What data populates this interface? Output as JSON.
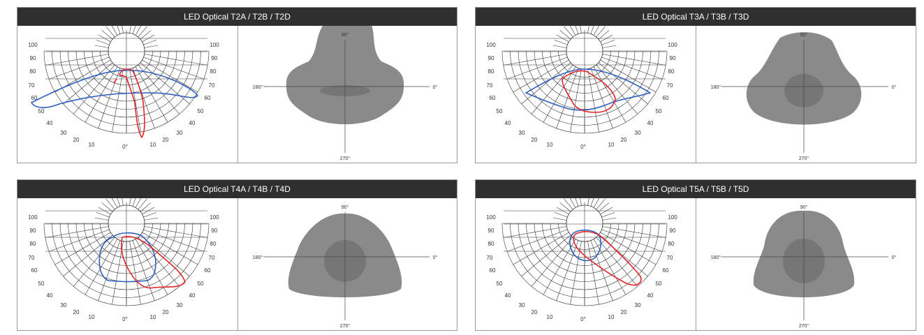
{
  "panels": [
    {
      "title": "LED Optical T2A / T2B / T2D",
      "polar": {
        "radial_labels": [
          "100",
          "90",
          "80",
          "70",
          "60",
          "50",
          "40",
          "30",
          "20",
          "10",
          "0°",
          "10",
          "20",
          "30",
          "40",
          "50",
          "60",
          "70",
          "80",
          "90",
          "100"
        ]
      },
      "iso": {
        "label_top": "90°",
        "label_left": "180°",
        "label_right": "0°",
        "label_bottom": "270°"
      }
    },
    {
      "title": "LED Optical T3A / T3B / T3D",
      "polar": {
        "radial_labels": [
          "100",
          "90",
          "80",
          "70",
          "60",
          "50",
          "40",
          "30",
          "20",
          "10",
          "0°",
          "10",
          "20",
          "30",
          "40",
          "50",
          "60",
          "70",
          "80",
          "90",
          "100"
        ]
      },
      "iso": {
        "label_top": "90°",
        "label_left": "180°",
        "label_right": "0°",
        "label_bottom": "270°"
      }
    },
    {
      "title": "LED Optical T4A / T4B / T4D",
      "polar": {
        "radial_labels": [
          "100",
          "90",
          "80",
          "70",
          "60",
          "50",
          "40",
          "30",
          "20",
          "10",
          "0°",
          "10",
          "20",
          "30",
          "40",
          "50",
          "60",
          "70",
          "80",
          "90",
          "100"
        ]
      },
      "iso": {
        "label_top": "90°",
        "label_left": "180°",
        "label_right": "0°",
        "label_bottom": "270°"
      }
    },
    {
      "title": "LED Optical T5A / T5B / T5D",
      "polar": {
        "radial_labels": [
          "100",
          "90",
          "80",
          "70",
          "60",
          "50",
          "40",
          "30",
          "20",
          "10",
          "0°",
          "10",
          "20",
          "30",
          "40",
          "50",
          "60",
          "70",
          "80",
          "90",
          "100"
        ]
      },
      "iso": {
        "label_top": "90°",
        "label_left": "180°",
        "label_right": "0°",
        "label_bottom": "270°"
      }
    }
  ],
  "colors": {
    "header_bg": "#2f2f2f",
    "curve_red": "#e3262a",
    "curve_blue": "#2e5fbf",
    "iso_fill": "#8a8a8a",
    "iso_core": "#767676",
    "grid": "#333333"
  }
}
